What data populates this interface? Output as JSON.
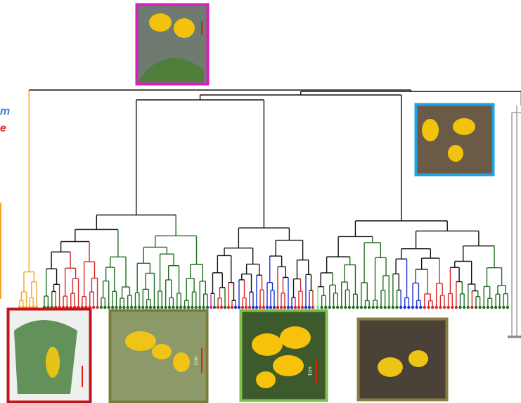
{
  "legend_fragments": [
    {
      "text": "m",
      "color": "#4a7fd0"
    },
    {
      "text": "e",
      "color": "#e0241c"
    }
  ],
  "photo_scale_labels": [
    "1cm",
    "1cm"
  ]
}
